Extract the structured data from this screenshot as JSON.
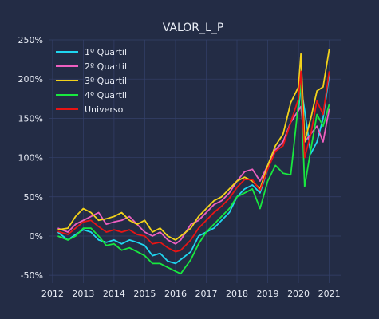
{
  "chart_data": {
    "type": "line",
    "title": "VALOR_L_P",
    "xlabel": "",
    "ylabel": "",
    "xlim": [
      2011.9,
      2021.4
    ],
    "ylim": [
      -0.6,
      2.5
    ],
    "x_ticks": [
      {
        "value": 2012,
        "label": "2012"
      },
      {
        "value": 2013,
        "label": "2013"
      },
      {
        "value": 2014,
        "label": "2014"
      },
      {
        "value": 2015,
        "label": "2015"
      },
      {
        "value": 2016,
        "label": "2016"
      },
      {
        "value": 2017,
        "label": "2017"
      },
      {
        "value": 2018,
        "label": "2018"
      },
      {
        "value": 2019,
        "label": "2019"
      },
      {
        "value": 2020,
        "label": "2020"
      },
      {
        "value": 2021,
        "label": "2021"
      }
    ],
    "y_ticks": [
      {
        "value": -0.5,
        "label": "-50%"
      },
      {
        "value": 0,
        "label": "0%"
      },
      {
        "value": 0.5,
        "label": "50%"
      },
      {
        "value": 1.0,
        "label": "100%"
      },
      {
        "value": 1.5,
        "label": "150%"
      },
      {
        "value": 2.0,
        "label": "200%"
      },
      {
        "value": 2.5,
        "label": "250%"
      }
    ],
    "grid": true,
    "legend_position": "top-left",
    "x": [
      2012.17,
      2012.5,
      2012.75,
      2013.0,
      2013.25,
      2013.5,
      2013.75,
      2014.0,
      2014.25,
      2014.5,
      2014.75,
      2015.0,
      2015.25,
      2015.5,
      2015.75,
      2016.0,
      2016.17,
      2016.5,
      2016.75,
      2017.0,
      2017.25,
      2017.5,
      2017.75,
      2018.0,
      2018.25,
      2018.5,
      2018.75,
      2019.0,
      2019.25,
      2019.5,
      2019.75,
      2020.0,
      2020.08,
      2020.2,
      2020.4,
      2020.6,
      2020.8,
      2021.0
    ],
    "series": [
      {
        "name": "1º Quartil",
        "color": "#1fd6f0",
        "values": [
          0.05,
          -0.05,
          0.02,
          0.08,
          0.05,
          -0.05,
          -0.08,
          -0.05,
          -0.1,
          -0.05,
          -0.08,
          -0.12,
          -0.25,
          -0.22,
          -0.32,
          -0.35,
          -0.3,
          -0.2,
          0.0,
          0.05,
          0.1,
          0.2,
          0.3,
          0.5,
          0.6,
          0.65,
          0.55,
          0.85,
          1.1,
          1.2,
          1.45,
          1.6,
          1.92,
          1.6,
          1.05,
          1.2,
          1.5,
          2.05
        ]
      },
      {
        "name": "2º Quartil",
        "color": "#ee5fc0",
        "values": [
          0.1,
          0.05,
          0.15,
          0.2,
          0.25,
          0.3,
          0.15,
          0.18,
          0.2,
          0.25,
          0.15,
          0.05,
          0.0,
          0.05,
          -0.05,
          -0.1,
          -0.05,
          0.15,
          0.2,
          0.3,
          0.4,
          0.45,
          0.55,
          0.7,
          0.82,
          0.85,
          0.7,
          0.9,
          1.1,
          1.2,
          1.45,
          1.6,
          1.65,
          1.2,
          1.3,
          1.4,
          1.2,
          1.62
        ]
      },
      {
        "name": "3º Quartil",
        "color": "#f2d21b",
        "values": [
          0.08,
          0.1,
          0.25,
          0.35,
          0.3,
          0.2,
          0.22,
          0.25,
          0.3,
          0.2,
          0.15,
          0.2,
          0.05,
          0.1,
          0.0,
          -0.05,
          0.0,
          0.1,
          0.25,
          0.35,
          0.45,
          0.5,
          0.6,
          0.7,
          0.75,
          0.7,
          0.6,
          0.9,
          1.15,
          1.3,
          1.7,
          1.9,
          2.32,
          1.2,
          1.5,
          1.85,
          1.9,
          2.38
        ]
      },
      {
        "name": "4º Quartil",
        "color": "#18e83f",
        "values": [
          0.0,
          -0.05,
          0.0,
          0.1,
          0.1,
          0.0,
          -0.12,
          -0.1,
          -0.18,
          -0.15,
          -0.2,
          -0.25,
          -0.35,
          -0.35,
          -0.4,
          -0.45,
          -0.48,
          -0.3,
          -0.1,
          0.05,
          0.15,
          0.25,
          0.35,
          0.5,
          0.55,
          0.6,
          0.35,
          0.7,
          0.9,
          0.8,
          0.78,
          1.7,
          1.97,
          0.63,
          1.1,
          1.55,
          1.4,
          1.68
        ]
      },
      {
        "name": "Universo",
        "color": "#e81414",
        "values": [
          0.06,
          0.02,
          0.1,
          0.18,
          0.2,
          0.12,
          0.05,
          0.08,
          0.05,
          0.08,
          0.02,
          0.0,
          -0.1,
          -0.08,
          -0.15,
          -0.2,
          -0.18,
          -0.05,
          0.1,
          0.2,
          0.3,
          0.38,
          0.48,
          0.62,
          0.72,
          0.72,
          0.58,
          0.85,
          1.08,
          1.15,
          1.45,
          1.75,
          2.1,
          1.0,
          1.3,
          1.72,
          1.55,
          2.1
        ]
      }
    ]
  }
}
